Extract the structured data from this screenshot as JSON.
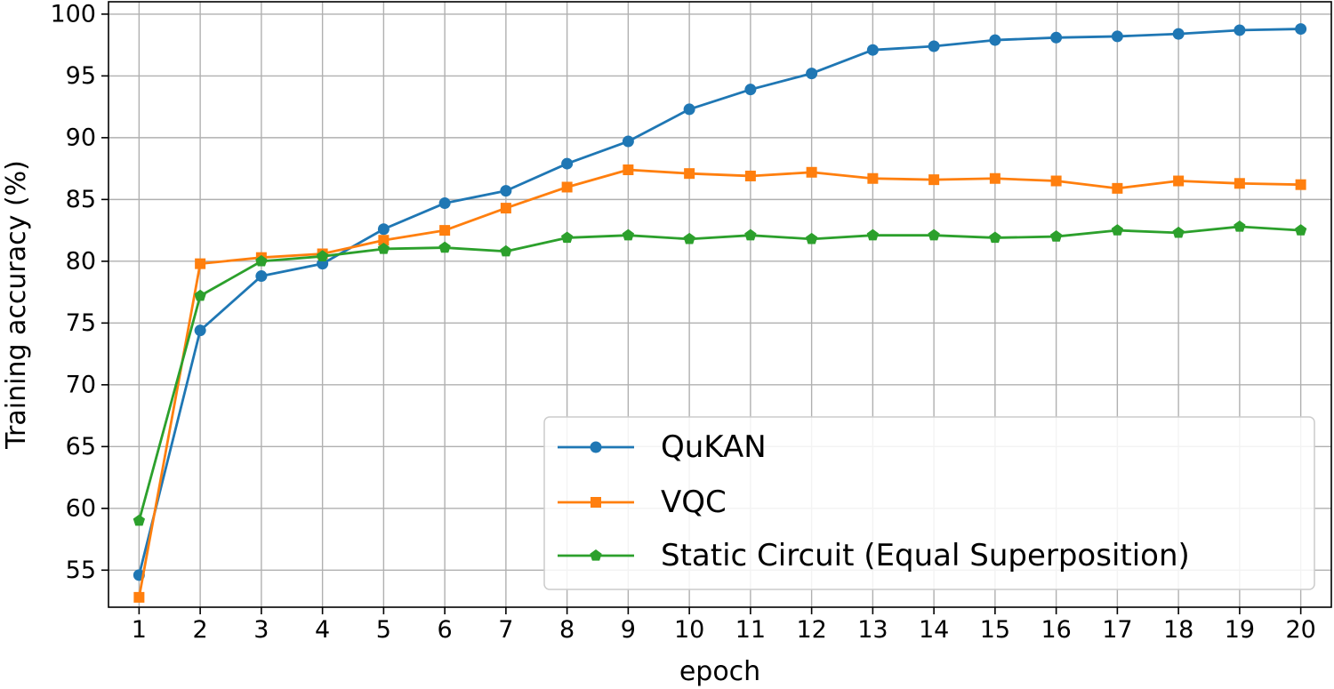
{
  "chart_data": {
    "type": "line",
    "title": "",
    "xlabel": "epoch",
    "ylabel": "Training accuracy (%)",
    "x": [
      1,
      2,
      3,
      4,
      5,
      6,
      7,
      8,
      9,
      10,
      11,
      12,
      13,
      14,
      15,
      16,
      17,
      18,
      19,
      20
    ],
    "xticks": [
      "1",
      "2",
      "3",
      "4",
      "5",
      "6",
      "7",
      "8",
      "9",
      "10",
      "11",
      "12",
      "13",
      "14",
      "15",
      "16",
      "17",
      "18",
      "19",
      "20"
    ],
    "yticks": [
      "55",
      "60",
      "65",
      "70",
      "75",
      "80",
      "85",
      "90",
      "95",
      "100"
    ],
    "xlim": [
      0.5,
      20.5
    ],
    "ylim": [
      52.0,
      101.0
    ],
    "grid": true,
    "legend_position": "bottom-right",
    "series": [
      {
        "name": "QuKAN",
        "color": "#1f77b4",
        "marker": "circle",
        "values": [
          54.6,
          74.4,
          78.8,
          79.8,
          82.6,
          84.7,
          85.7,
          87.9,
          89.7,
          92.3,
          93.9,
          95.2,
          97.1,
          97.4,
          97.9,
          98.1,
          98.2,
          98.4,
          98.7,
          98.8
        ]
      },
      {
        "name": "VQC",
        "color": "#ff7f0e",
        "marker": "square",
        "values": [
          52.8,
          79.8,
          80.3,
          80.6,
          81.7,
          82.5,
          84.3,
          86.0,
          87.4,
          87.1,
          86.9,
          87.2,
          86.7,
          86.6,
          86.7,
          86.5,
          85.9,
          86.5,
          86.3,
          86.2
        ]
      },
      {
        "name": "Static Circuit (Equal Superposition)",
        "color": "#2ca02c",
        "marker": "pentagon",
        "values": [
          59.0,
          77.2,
          80.0,
          80.4,
          81.0,
          81.1,
          80.8,
          81.9,
          82.1,
          81.8,
          82.1,
          81.8,
          82.1,
          82.1,
          81.9,
          82.0,
          82.5,
          82.3,
          82.8,
          82.5
        ]
      }
    ]
  }
}
